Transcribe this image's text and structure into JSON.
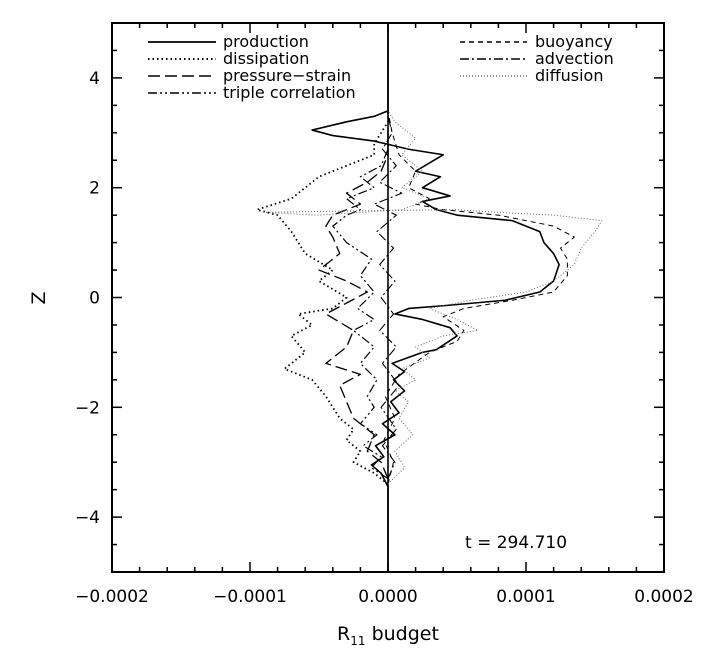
{
  "chart_data": {
    "type": "line",
    "title": "",
    "xlabel": "R",
    "xlabel_subscript": "11",
    "xlabel_suffix": " budget",
    "ylabel": "Z",
    "xlim": [
      -0.0002,
      0.0002
    ],
    "ylim": [
      -5,
      5
    ],
    "x_ticks": [
      -0.0002,
      -0.0001,
      0.0,
      0.0001,
      0.0002
    ],
    "x_tick_labels": [
      "−0.0002",
      "−0.0001",
      "0.0000",
      "0.0001",
      "0.0002"
    ],
    "y_ticks": [
      -4,
      -2,
      0,
      2,
      4
    ],
    "y_tick_labels": [
      "−4",
      "−2",
      "0",
      "2",
      "4"
    ],
    "grid": false,
    "annotation": "t = 294.710",
    "legend_left": [
      "production",
      "dissipation",
      "pressure−strain",
      "triple correlation"
    ],
    "legend_right": [
      "buoyancy",
      "advection",
      "diffusion"
    ],
    "series": [
      {
        "name": "production",
        "dash": "solid",
        "points": [
          [
            0,
            -5
          ],
          [
            0,
            -3.45
          ],
          [
            -5e-06,
            -3.2
          ],
          [
            -1.2e-05,
            -3.05
          ],
          [
            -3e-06,
            -2.9
          ],
          [
            -9e-06,
            -2.7
          ],
          [
            5e-06,
            -2.5
          ],
          [
            -4e-06,
            -2.3
          ],
          [
            8e-06,
            -2.1
          ],
          [
            2e-06,
            -1.9
          ],
          [
            1.2e-05,
            -1.7
          ],
          [
            4e-06,
            -1.5
          ],
          [
            1.2e-05,
            -1.35
          ],
          [
            3e-06,
            -1.2
          ],
          [
            2.5e-05,
            -1.0
          ],
          [
            3.5e-05,
            -0.95
          ],
          [
            5e-05,
            -0.7
          ],
          [
            4.5e-05,
            -0.55
          ],
          [
            2.5e-05,
            -0.4
          ],
          [
            5e-06,
            -0.3
          ],
          [
            1.5e-05,
            -0.2
          ],
          [
            4e-05,
            -0.15
          ],
          [
            8.5e-05,
            -0.05
          ],
          [
            0.00011,
            0.1
          ],
          [
            0.00012,
            0.3
          ],
          [
            0.000124,
            0.6
          ],
          [
            0.00012,
            0.8
          ],
          [
            0.000113,
            1.0
          ],
          [
            0.00011,
            1.2
          ],
          [
            9e-05,
            1.4
          ],
          [
            5e-05,
            1.5
          ],
          [
            3.5e-05,
            1.6
          ],
          [
            2.5e-05,
            1.75
          ],
          [
            4.5e-05,
            1.85
          ],
          [
            2.5e-05,
            2.0
          ],
          [
            3.8e-05,
            2.2
          ],
          [
            2e-05,
            2.3
          ],
          [
            4e-05,
            2.6
          ],
          [
            1.5e-05,
            2.7
          ],
          [
            -1e-05,
            2.85
          ],
          [
            -4e-05,
            2.95
          ],
          [
            -5.5e-05,
            3.05
          ],
          [
            -3e-05,
            3.2
          ],
          [
            -1e-05,
            3.3
          ],
          [
            0,
            3.4
          ],
          [
            0,
            5
          ]
        ]
      },
      {
        "name": "dissipation",
        "dash": "dotted",
        "points": [
          [
            0,
            -3.4
          ],
          [
            -1e-05,
            -3.2
          ],
          [
            -2.5e-05,
            -3.0
          ],
          [
            -2e-05,
            -2.8
          ],
          [
            -3e-05,
            -2.6
          ],
          [
            -2.5e-05,
            -2.4
          ],
          [
            -3.5e-05,
            -2.2
          ],
          [
            -4e-05,
            -2.0
          ],
          [
            -4.5e-05,
            -1.8
          ],
          [
            -5.5e-05,
            -1.5
          ],
          [
            -7.5e-05,
            -1.3
          ],
          [
            -6e-05,
            -1.0
          ],
          [
            -7e-05,
            -0.7
          ],
          [
            -5.5e-05,
            -0.5
          ],
          [
            -6.5e-05,
            -0.3
          ],
          [
            -4e-05,
            -0.2
          ],
          [
            -3e-05,
            0.0
          ],
          [
            -5e-05,
            0.3
          ],
          [
            -4e-05,
            0.5
          ],
          [
            -6e-05,
            0.8
          ],
          [
            -7e-05,
            1.2
          ],
          [
            -8e-05,
            1.5
          ],
          [
            -9.5e-05,
            1.6
          ],
          [
            -7e-05,
            1.8
          ],
          [
            -6e-05,
            2.0
          ],
          [
            -5e-05,
            2.2
          ],
          [
            -3e-05,
            2.4
          ],
          [
            -1e-05,
            2.6
          ],
          [
            -1e-05,
            2.8
          ],
          [
            0,
            3.2
          ],
          [
            0,
            3.4
          ]
        ]
      },
      {
        "name": "pressure−strain",
        "dash": "long-dash",
        "points": [
          [
            0,
            -3.3
          ],
          [
            -5e-06,
            -3.0
          ],
          [
            -1.5e-05,
            -2.8
          ],
          [
            -1e-05,
            -2.5
          ],
          [
            -2.5e-05,
            -2.2
          ],
          [
            -3e-05,
            -1.9
          ],
          [
            -3.5e-05,
            -1.6
          ],
          [
            -2e-05,
            -1.4
          ],
          [
            -4.5e-05,
            -1.2
          ],
          [
            -3e-05,
            -0.9
          ],
          [
            -2.5e-05,
            -0.6
          ],
          [
            -4.5e-05,
            -0.3
          ],
          [
            -3e-05,
            -0.1
          ],
          [
            -1.5e-05,
            0.1
          ],
          [
            -3e-05,
            0.3
          ],
          [
            -5e-05,
            0.5
          ],
          [
            -3.5e-05,
            0.8
          ],
          [
            -4e-05,
            1.1
          ],
          [
            -4.5e-05,
            1.3
          ],
          [
            -4e-05,
            1.5
          ],
          [
            -2e-05,
            1.7
          ],
          [
            -3e-05,
            1.9
          ],
          [
            -1.5e-05,
            2.1
          ],
          [
            -5e-06,
            2.3
          ],
          [
            0,
            2.6
          ],
          [
            0,
            3.0
          ]
        ]
      },
      {
        "name": "triple correlation",
        "dash": "dash-dot-dot",
        "points": [
          [
            0,
            -3.3
          ],
          [
            -1.2e-05,
            -3.1
          ],
          [
            -5e-06,
            -2.9
          ],
          [
            -1.8e-05,
            -2.7
          ],
          [
            -8e-06,
            -2.5
          ],
          [
            -2e-05,
            -2.3
          ],
          [
            -1e-05,
            -2.0
          ],
          [
            -1.5e-05,
            -1.8
          ],
          [
            -8e-06,
            -1.5
          ],
          [
            -2e-05,
            -1.2
          ],
          [
            -1e-05,
            -0.9
          ],
          [
            -2.5e-05,
            -0.6
          ],
          [
            -1e-05,
            -0.4
          ],
          [
            -2.2e-05,
            -0.2
          ],
          [
            -1e-05,
            0.1
          ],
          [
            -2e-05,
            0.4
          ],
          [
            -1.2e-05,
            0.7
          ],
          [
            -3e-05,
            1.0
          ],
          [
            -4e-05,
            1.3
          ],
          [
            -3e-05,
            1.5
          ],
          [
            -2e-05,
            1.6
          ],
          [
            -3e-05,
            1.8
          ],
          [
            -1e-05,
            2.0
          ],
          [
            -2e-05,
            2.2
          ],
          [
            -5e-06,
            2.4
          ],
          [
            0,
            2.7
          ],
          [
            0,
            3.1
          ]
        ]
      },
      {
        "name": "buoyancy",
        "dash": "short-dash",
        "points": [
          [
            0,
            -3.4
          ],
          [
            4e-06,
            -3.0
          ],
          [
            -3e-06,
            -2.6
          ],
          [
            5e-06,
            -2.2
          ],
          [
            -2e-06,
            -1.8
          ],
          [
            8e-06,
            -1.4
          ],
          [
            3e-05,
            -1.0
          ],
          [
            5e-05,
            -0.8
          ],
          [
            5.5e-05,
            -0.6
          ],
          [
            4e-05,
            -0.35
          ],
          [
            5.5e-05,
            -0.2
          ],
          [
            9e-05,
            -0.05
          ],
          [
            0.00012,
            0.1
          ],
          [
            0.00013,
            0.4
          ],
          [
            0.00013,
            0.7
          ],
          [
            0.000125,
            0.9
          ],
          [
            0.000135,
            1.1
          ],
          [
            0.00012,
            1.3
          ],
          [
            8e-05,
            1.5
          ],
          [
            4e-05,
            1.6
          ],
          [
            2e-05,
            1.7
          ],
          [
            3e-05,
            1.8
          ],
          [
            1.5e-05,
            2.0
          ],
          [
            2e-05,
            2.3
          ],
          [
            8e-06,
            2.6
          ],
          [
            3e-06,
            3.0
          ],
          [
            0,
            3.4
          ]
        ]
      },
      {
        "name": "advection",
        "dash": "dash-dot",
        "points": [
          [
            0,
            -3.3
          ],
          [
            5e-06,
            -3.0
          ],
          [
            -4e-06,
            -2.7
          ],
          [
            6e-06,
            -2.4
          ],
          [
            -5e-06,
            -2.0
          ],
          [
            8e-06,
            -1.6
          ],
          [
            -4e-06,
            -1.2
          ],
          [
            6e-06,
            -0.9
          ],
          [
            -6e-06,
            -0.6
          ],
          [
            4e-06,
            -0.3
          ],
          [
            -5e-06,
            0.0
          ],
          [
            5e-06,
            0.3
          ],
          [
            -6e-06,
            0.6
          ],
          [
            4e-06,
            0.9
          ],
          [
            -8e-06,
            1.2
          ],
          [
            6e-06,
            1.5
          ],
          [
            -1e-05,
            1.7
          ],
          [
            1e-05,
            1.9
          ],
          [
            -6e-06,
            2.1
          ],
          [
            6e-06,
            2.4
          ],
          [
            -4e-06,
            2.7
          ],
          [
            3e-06,
            3.0
          ],
          [
            0,
            3.3
          ]
        ]
      },
      {
        "name": "diffusion",
        "dash": "fine-dot",
        "points": [
          [
            0,
            -3.4
          ],
          [
            1.2e-05,
            -3.1
          ],
          [
            5e-06,
            -2.8
          ],
          [
            1.8e-05,
            -2.5
          ],
          [
            8e-06,
            -2.2
          ],
          [
            1.5e-05,
            -1.9
          ],
          [
            5e-06,
            -1.7
          ],
          [
            2e-05,
            -1.5
          ],
          [
            1e-05,
            -1.3
          ],
          [
            3e-05,
            -1.1
          ],
          [
            2e-05,
            -0.9
          ],
          [
            4e-05,
            -0.7
          ],
          [
            6.5e-05,
            -0.6
          ],
          [
            5e-05,
            -0.4
          ],
          [
            3e-05,
            -0.2
          ],
          [
            6e-05,
            -0.05
          ],
          [
            0.0001,
            0.1
          ],
          [
            0.00012,
            0.3
          ],
          [
            0.000135,
            0.6
          ],
          [
            0.00014,
            0.9
          ],
          [
            0.00015,
            1.2
          ],
          [
            0.000155,
            1.4
          ],
          [
            0.00012,
            1.5
          ],
          [
            8e-05,
            1.55
          ],
          [
            5e-05,
            1.6
          ],
          [
            -2e-05,
            1.58
          ],
          [
            -9e-05,
            1.55
          ],
          [
            -5e-05,
            1.5
          ],
          [
            1e-05,
            1.6
          ],
          [
            3e-05,
            1.8
          ],
          [
            1e-05,
            2.0
          ],
          [
            2.5e-05,
            2.3
          ],
          [
            1e-05,
            2.6
          ],
          [
            2e-05,
            2.9
          ],
          [
            5e-06,
            3.2
          ],
          [
            0,
            3.4
          ]
        ]
      }
    ]
  }
}
